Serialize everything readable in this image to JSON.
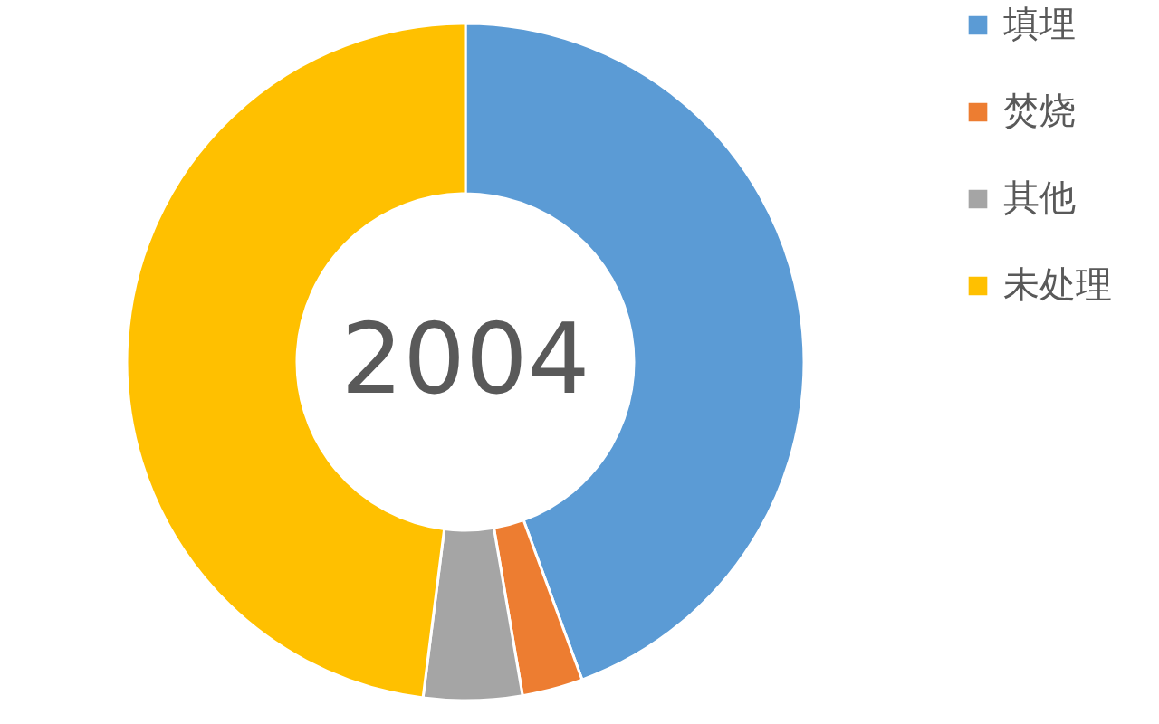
{
  "chart_data": {
    "type": "donut",
    "title": "2004",
    "categories": [
      "填埋",
      "焚烧",
      "其他",
      "未处理"
    ],
    "values": [
      44.4,
      2.9,
      4.7,
      48.0
    ],
    "colors": [
      "#5b9bd5",
      "#ed7d31",
      "#a5a5a5",
      "#ffc000"
    ],
    "legend": "right"
  }
}
